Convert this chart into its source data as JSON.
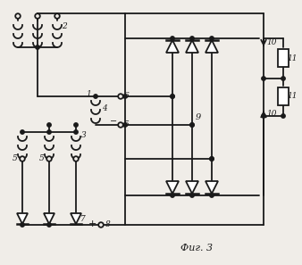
{
  "bg_color": "#f0ede8",
  "line_color": "#1a1a1a",
  "lw": 1.3,
  "fig_caption": "Фиг. 3"
}
